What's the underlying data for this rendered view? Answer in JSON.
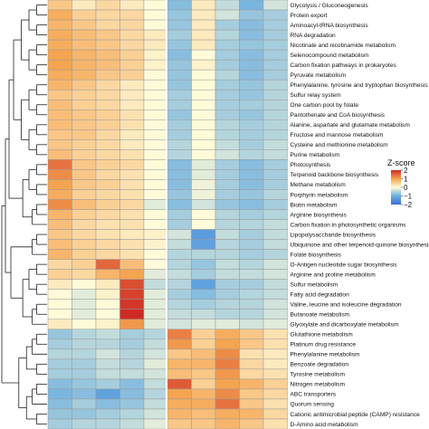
{
  "chart_data": {
    "type": "heatmap",
    "title": "",
    "rows": [
      {
        "name": "Glycolysis / Gluconeogenesis",
        "values": [
          0.6,
          0.2,
          0.4,
          0.2,
          0.0,
          -0.8,
          0.2,
          -0.4,
          -0.9,
          -0.3
        ]
      },
      {
        "name": "Protein export",
        "values": [
          0.9,
          0.5,
          0.4,
          0.4,
          0.0,
          -0.7,
          0.2,
          -0.3,
          -0.7,
          -0.6
        ]
      },
      {
        "name": "Aminoacyl-tRNA biosynthesis",
        "values": [
          0.8,
          0.6,
          0.4,
          0.4,
          0.0,
          -0.7,
          0.2,
          -0.6,
          -0.8,
          -0.6
        ]
      },
      {
        "name": "RNA degradation",
        "values": [
          0.9,
          0.7,
          0.6,
          0.4,
          0.2,
          -0.6,
          0.2,
          -0.5,
          -0.8,
          -0.6
        ]
      },
      {
        "name": "Nicotinate and nicotinamide metabolism",
        "values": [
          0.9,
          0.7,
          0.6,
          0.4,
          0.2,
          -0.7,
          0.2,
          -0.6,
          -0.7,
          -0.6
        ]
      },
      {
        "name": "Selenocompound metabolism",
        "values": [
          1.0,
          0.8,
          0.7,
          0.5,
          0.1,
          -0.8,
          0.0,
          -0.6,
          -0.8,
          -0.6
        ]
      },
      {
        "name": "Carbon fixation pathways in prokaryotes",
        "values": [
          1.0,
          0.8,
          0.7,
          0.5,
          0.1,
          -0.7,
          0.1,
          -0.6,
          -0.8,
          -0.6
        ]
      },
      {
        "name": "Pyruvate metabolism",
        "values": [
          0.9,
          0.8,
          0.6,
          0.5,
          0.0,
          -0.7,
          0.0,
          -0.5,
          -0.8,
          -0.6
        ]
      },
      {
        "name": "Phenylalanine, tyrosine and tryptophan biosynthesis",
        "values": [
          0.8,
          0.6,
          0.4,
          0.2,
          0.0,
          -0.7,
          0.0,
          -0.6,
          -0.7,
          -0.5
        ]
      },
      {
        "name": "Sulfur relay system",
        "values": [
          0.6,
          0.5,
          0.4,
          0.2,
          0.0,
          -0.6,
          0.0,
          -0.6,
          -0.7,
          -0.5
        ]
      },
      {
        "name": "One carbon pool by folate",
        "values": [
          0.7,
          0.5,
          0.4,
          0.2,
          0.0,
          -0.6,
          0.0,
          -0.6,
          -0.6,
          -0.5
        ]
      },
      {
        "name": "Pantothenate and CoA biosynthesis",
        "values": [
          0.7,
          0.6,
          0.5,
          0.3,
          0.0,
          -0.7,
          0.0,
          -0.6,
          -0.7,
          -0.5
        ]
      },
      {
        "name": "Alanine, aspartate and glutamate metabolism",
        "values": [
          0.7,
          0.6,
          0.5,
          0.3,
          0.0,
          -0.6,
          0.0,
          -0.5,
          -0.6,
          -0.5
        ]
      },
      {
        "name": "Fructose and mannose metabolism",
        "values": [
          0.6,
          0.6,
          0.4,
          0.2,
          0.0,
          -0.6,
          0.0,
          -0.5,
          -0.6,
          -0.5
        ]
      },
      {
        "name": "Cysteine and methionine metabolism",
        "values": [
          0.6,
          0.5,
          0.4,
          0.2,
          0.0,
          -0.5,
          0.0,
          -0.4,
          -0.6,
          -0.4
        ]
      },
      {
        "name": "Purine metabolism",
        "values": [
          0.7,
          0.5,
          0.4,
          0.3,
          0.0,
          -0.5,
          0.0,
          -0.3,
          -0.5,
          -0.4
        ]
      },
      {
        "name": "Photosynthesis",
        "values": [
          1.4,
          0.6,
          0.5,
          0.4,
          0.0,
          -0.8,
          -0.2,
          -0.6,
          -0.8,
          -0.6
        ]
      },
      {
        "name": "Terpenoid backbone biosynthesis",
        "values": [
          1.2,
          0.6,
          0.4,
          0.3,
          0.0,
          -0.8,
          -0.2,
          -0.6,
          -0.8,
          -0.6
        ]
      },
      {
        "name": "Methane metabolism",
        "values": [
          1.0,
          0.6,
          0.5,
          0.3,
          0.0,
          -0.8,
          -0.1,
          -0.6,
          -0.8,
          -0.6
        ]
      },
      {
        "name": "Porphyrin metabolism",
        "values": [
          0.9,
          0.5,
          0.4,
          0.3,
          0.0,
          -0.7,
          -0.1,
          -0.6,
          -0.7,
          -0.5
        ]
      },
      {
        "name": "Biotin metabolism",
        "values": [
          1.2,
          0.7,
          0.5,
          0.4,
          -0.2,
          -0.8,
          -0.3,
          -0.7,
          -0.8,
          -0.6
        ]
      },
      {
        "name": "Arginine biosynthesis",
        "values": [
          0.8,
          0.5,
          0.4,
          0.3,
          0.0,
          -0.6,
          0.0,
          -0.5,
          -0.6,
          -0.5
        ]
      },
      {
        "name": "Carbon fixation in photosynthetic organisms",
        "values": [
          0.7,
          0.4,
          0.3,
          0.3,
          0.0,
          -0.6,
          0.0,
          -0.5,
          -0.5,
          -0.4
        ]
      },
      {
        "name": "Lipopolysaccharide biosynthesis",
        "values": [
          0.6,
          0.4,
          0.3,
          0.2,
          0.1,
          -0.3,
          -1.3,
          -0.4,
          -0.6,
          -0.4
        ]
      },
      {
        "name": "Ubiquinone and other terpenoid-quinone biosynthesis",
        "values": [
          0.7,
          0.5,
          0.4,
          0.3,
          0.1,
          -0.4,
          -1.2,
          -0.5,
          -0.6,
          -0.4
        ]
      },
      {
        "name": "Folate biosynthesis",
        "values": [
          0.8,
          0.5,
          0.4,
          0.3,
          0.0,
          -0.5,
          -0.5,
          -0.5,
          -0.6,
          -0.5
        ]
      },
      {
        "name": "O-Antigen nucleotide sugar biosynthesis",
        "values": [
          0.4,
          0.5,
          1.5,
          0.7,
          0.0,
          -0.5,
          -0.7,
          -0.4,
          -0.5,
          -0.3
        ]
      },
      {
        "name": "Arginine and proline metabolism",
        "values": [
          0.5,
          0.4,
          0.8,
          1.0,
          -0.2,
          -0.4,
          -0.6,
          -0.4,
          -0.4,
          -0.3
        ]
      },
      {
        "name": "Sulfur metabolism",
        "values": [
          0.2,
          0.0,
          0.2,
          1.7,
          -0.4,
          -0.5,
          -1.2,
          -0.6,
          -0.6,
          -0.4
        ]
      },
      {
        "name": "Fatty acid degradation",
        "values": [
          0.0,
          -0.2,
          0.1,
          1.8,
          -0.2,
          -0.6,
          -0.8,
          -0.6,
          -0.5,
          -0.4
        ]
      },
      {
        "name": "Valine, leucine and isoleucine degradation",
        "values": [
          0.0,
          -0.2,
          0.0,
          1.9,
          -0.2,
          -0.5,
          -0.6,
          -0.5,
          -0.5,
          -0.3
        ]
      },
      {
        "name": "Butanoate metabolism",
        "values": [
          0.0,
          -0.2,
          0.0,
          2.2,
          -0.2,
          -0.4,
          -0.4,
          -0.5,
          -0.5,
          -0.3
        ]
      },
      {
        "name": "Glyoxylate and dicarboxylate metabolism",
        "values": [
          0.2,
          0.0,
          0.1,
          1.1,
          -0.2,
          -0.3,
          -0.2,
          -0.2,
          -0.3,
          -0.2
        ]
      },
      {
        "name": "Glutathione metabolism",
        "values": [
          -0.7,
          -0.5,
          -0.4,
          -0.6,
          -0.5,
          1.3,
          0.5,
          0.9,
          0.6,
          0.3
        ]
      },
      {
        "name": "Platinum drug resistance",
        "values": [
          -0.6,
          -0.5,
          -0.5,
          -0.6,
          -0.4,
          1.1,
          0.5,
          1.0,
          0.6,
          0.3
        ]
      },
      {
        "name": "Phenylalanine metabolism",
        "values": [
          -0.5,
          -0.5,
          -0.3,
          -0.5,
          -0.3,
          0.6,
          0.7,
          1.2,
          0.3,
          0.2
        ]
      },
      {
        "name": "Benzoate degradation",
        "values": [
          -0.6,
          -0.6,
          -0.4,
          -0.5,
          -0.2,
          0.8,
          0.8,
          1.3,
          0.4,
          0.2
        ]
      },
      {
        "name": "Tyrosine metabolism",
        "values": [
          -0.6,
          -0.6,
          -0.4,
          -0.4,
          -0.3,
          0.7,
          0.6,
          1.1,
          0.4,
          0.3
        ]
      },
      {
        "name": "Nitrogen metabolism",
        "values": [
          -0.8,
          -0.7,
          -0.6,
          -0.8,
          -0.4,
          1.6,
          0.5,
          1.0,
          0.8,
          0.5
        ]
      },
      {
        "name": "ABC transporters",
        "values": [
          -0.9,
          -0.8,
          -1.2,
          -0.8,
          -0.5,
          1.0,
          0.8,
          1.2,
          0.6,
          0.4
        ]
      },
      {
        "name": "Quorum sensing",
        "values": [
          -0.8,
          -0.6,
          -0.8,
          -0.7,
          -0.4,
          0.9,
          0.9,
          1.4,
          0.6,
          0.3
        ]
      },
      {
        "name": "Cationic antimicrobial peptide (CAMP) resistance",
        "values": [
          -0.7,
          -0.7,
          -0.6,
          -0.5,
          -0.3,
          0.8,
          0.7,
          0.9,
          0.8,
          0.4
        ]
      },
      {
        "name": "D-Amino acid metabolism",
        "values": [
          -0.6,
          -0.5,
          -0.5,
          -0.4,
          -0.2,
          0.6,
          0.6,
          0.8,
          0.6,
          0.3
        ]
      }
    ],
    "n_columns": 10,
    "column_split_after": 5,
    "dendrogram": "rows-left",
    "legend": {
      "title": "Z-score",
      "ticks": [
        2,
        1,
        0,
        -1,
        -2
      ],
      "range": [
        -2,
        2
      ],
      "placement": "right",
      "colors": [
        "#3a6fd6",
        "#6aaee0",
        "#fffbd9",
        "#f5a450",
        "#cf2a25"
      ]
    }
  }
}
